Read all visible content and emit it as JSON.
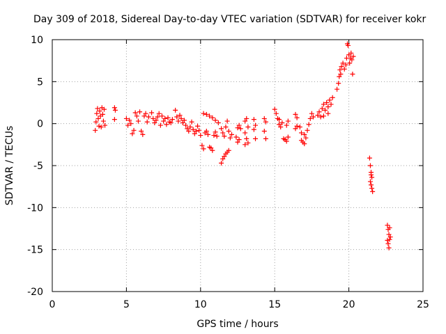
{
  "chart_data": {
    "type": "scatter",
    "title": "Day 309 of 2018, Sidereal Day-to-day VTEC variation (SDTVAR) for receiver kokr",
    "xlabel": "GPS time / hours",
    "ylabel": "SDTVAR / TECUs",
    "xlim": [
      0,
      25
    ],
    "ylim": [
      -20,
      10
    ],
    "xticks": [
      0,
      5,
      10,
      15,
      20,
      25
    ],
    "yticks": [
      10,
      5,
      0,
      -5,
      -10,
      -15,
      -20
    ],
    "grid": true,
    "marker": "+",
    "color": "#ff0000",
    "series": [
      {
        "name": "SDTVAR",
        "points": [
          [
            2.9,
            -0.8
          ],
          [
            2.95,
            0.2
          ],
          [
            3.0,
            1.2
          ],
          [
            3.05,
            1.8
          ],
          [
            3.1,
            0.6
          ],
          [
            3.15,
            -0.3
          ],
          [
            3.2,
            1.5
          ],
          [
            3.25,
            0.9
          ],
          [
            3.3,
            -0.4
          ],
          [
            3.35,
            1.9
          ],
          [
            3.4,
            1.1
          ],
          [
            3.45,
            0.3
          ],
          [
            3.5,
            1.7
          ],
          [
            3.55,
            -0.2
          ],
          [
            4.2,
            1.9
          ],
          [
            4.25,
            1.6
          ],
          [
            4.2,
            0.5
          ],
          [
            5.0,
            0.6
          ],
          [
            5.1,
            -0.2
          ],
          [
            5.2,
            0.4
          ],
          [
            5.3,
            0.0
          ],
          [
            5.4,
            -1.2
          ],
          [
            5.5,
            -0.8
          ],
          [
            5.6,
            1.3
          ],
          [
            5.7,
            0.9
          ],
          [
            5.8,
            0.3
          ],
          [
            5.9,
            1.4
          ],
          [
            6.0,
            -0.9
          ],
          [
            6.1,
            -1.3
          ],
          [
            6.2,
            0.9
          ],
          [
            6.3,
            1.2
          ],
          [
            6.4,
            0.2
          ],
          [
            6.5,
            0.8
          ],
          [
            6.7,
            1.3
          ],
          [
            6.8,
            0.6
          ],
          [
            6.9,
            0.1
          ],
          [
            7.0,
            0.4
          ],
          [
            7.1,
            0.8
          ],
          [
            7.2,
            1.2
          ],
          [
            7.3,
            -0.2
          ],
          [
            7.4,
            0.9
          ],
          [
            7.5,
            0.3
          ],
          [
            7.6,
            0.6
          ],
          [
            7.7,
            -0.1
          ],
          [
            7.8,
            0.7
          ],
          [
            7.9,
            0.2
          ],
          [
            8.0,
            0.1
          ],
          [
            8.1,
            0.5
          ],
          [
            8.3,
            1.6
          ],
          [
            8.4,
            0.8
          ],
          [
            8.5,
            0.3
          ],
          [
            8.6,
            1.0
          ],
          [
            8.7,
            0.6
          ],
          [
            8.8,
            0.1
          ],
          [
            8.9,
            0.4
          ],
          [
            9.0,
            -0.2
          ],
          [
            9.1,
            -0.6
          ],
          [
            9.2,
            -0.9
          ],
          [
            9.3,
            -0.4
          ],
          [
            9.4,
            0.2
          ],
          [
            9.5,
            -0.7
          ],
          [
            9.6,
            -1.2
          ],
          [
            9.7,
            -0.9
          ],
          [
            9.8,
            -0.3
          ],
          [
            9.9,
            -0.8
          ],
          [
            10.0,
            -1.4
          ],
          [
            10.1,
            -2.6
          ],
          [
            10.2,
            -3.0
          ],
          [
            10.3,
            -1.1
          ],
          [
            10.4,
            -0.9
          ],
          [
            10.5,
            -1.3
          ],
          [
            10.6,
            -2.8
          ],
          [
            10.7,
            -2.9
          ],
          [
            10.8,
            -3.2
          ],
          [
            10.9,
            -1.4
          ],
          [
            11.0,
            -1.0
          ],
          [
            11.1,
            -1.5
          ],
          [
            10.2,
            1.2
          ],
          [
            10.4,
            1.1
          ],
          [
            10.6,
            0.9
          ],
          [
            10.8,
            0.7
          ],
          [
            11.0,
            0.4
          ],
          [
            11.2,
            0.1
          ],
          [
            11.4,
            -0.6
          ],
          [
            11.5,
            -1.1
          ],
          [
            11.4,
            -4.7
          ],
          [
            11.5,
            -4.2
          ],
          [
            11.6,
            -3.9
          ],
          [
            11.7,
            -3.6
          ],
          [
            11.8,
            -3.4
          ],
          [
            11.9,
            -3.2
          ],
          [
            11.6,
            -1.5
          ],
          [
            11.7,
            -0.4
          ],
          [
            11.8,
            0.3
          ],
          [
            11.9,
            -0.9
          ],
          [
            12.0,
            -1.7
          ],
          [
            12.1,
            -1.3
          ],
          [
            12.4,
            -1.6
          ],
          [
            12.5,
            -2.2
          ],
          [
            12.6,
            -1.9
          ],
          [
            12.5,
            -0.5
          ],
          [
            12.6,
            -0.2
          ],
          [
            12.7,
            -0.6
          ],
          [
            13.0,
            0.3
          ],
          [
            13.1,
            0.6
          ],
          [
            13.2,
            -0.4
          ],
          [
            13.0,
            -1.1
          ],
          [
            13.1,
            -1.8
          ],
          [
            13.2,
            -2.3
          ],
          [
            13.0,
            -2.5
          ],
          [
            13.6,
            0.5
          ],
          [
            13.7,
            -0.2
          ],
          [
            13.6,
            -0.7
          ],
          [
            13.7,
            -1.8
          ],
          [
            14.3,
            0.6
          ],
          [
            14.4,
            0.2
          ],
          [
            14.3,
            -0.9
          ],
          [
            14.4,
            -1.8
          ],
          [
            15.0,
            1.7
          ],
          [
            15.1,
            1.2
          ],
          [
            15.2,
            0.6
          ],
          [
            15.3,
            -0.1
          ],
          [
            15.4,
            -0.4
          ],
          [
            15.3,
            0.5
          ],
          [
            15.5,
            0.1
          ],
          [
            15.6,
            -1.8
          ],
          [
            15.7,
            -1.9
          ],
          [
            15.8,
            -2.1
          ],
          [
            15.9,
            -1.6
          ],
          [
            15.8,
            -0.2
          ],
          [
            15.9,
            0.3
          ],
          [
            16.4,
            1.1
          ],
          [
            16.5,
            0.7
          ],
          [
            16.4,
            -0.6
          ],
          [
            16.5,
            -0.3
          ],
          [
            16.7,
            -0.4
          ],
          [
            16.8,
            -1.1
          ],
          [
            16.9,
            -2.2
          ],
          [
            17.0,
            -2.4
          ],
          [
            17.1,
            -1.7
          ],
          [
            17.2,
            -0.8
          ],
          [
            17.3,
            -0.1
          ],
          [
            17.4,
            0.6
          ],
          [
            17.5,
            1.2
          ],
          [
            17.6,
            0.8
          ],
          [
            16.8,
            -2.0
          ],
          [
            17.0,
            -1.3
          ],
          [
            17.9,
            1.0
          ],
          [
            18.0,
            1.4
          ],
          [
            18.1,
            0.8
          ],
          [
            18.2,
            1.8
          ],
          [
            18.3,
            2.3
          ],
          [
            18.4,
            1.6
          ],
          [
            18.5,
            2.5
          ],
          [
            18.6,
            2.0
          ],
          [
            18.7,
            2.8
          ],
          [
            18.8,
            2.3
          ],
          [
            18.9,
            3.1
          ],
          [
            18.3,
            0.9
          ],
          [
            18.6,
            1.2
          ],
          [
            19.2,
            4.1
          ],
          [
            19.3,
            4.8
          ],
          [
            19.35,
            5.6
          ],
          [
            19.4,
            6.4
          ],
          [
            19.45,
            5.9
          ],
          [
            19.5,
            6.8
          ],
          [
            19.6,
            7.2
          ],
          [
            19.7,
            6.5
          ],
          [
            19.8,
            7.0
          ],
          [
            19.85,
            7.8
          ],
          [
            19.9,
            9.5
          ],
          [
            19.95,
            9.3
          ],
          [
            20.0,
            8.2
          ],
          [
            20.05,
            7.2
          ],
          [
            20.1,
            7.8
          ],
          [
            20.15,
            8.4
          ],
          [
            20.2,
            7.6
          ],
          [
            20.25,
            5.9
          ],
          [
            20.3,
            8.0
          ],
          [
            21.4,
            -4.1
          ],
          [
            21.45,
            -5.0
          ],
          [
            21.5,
            -5.8
          ],
          [
            21.55,
            -6.4
          ],
          [
            21.45,
            -6.9
          ],
          [
            21.5,
            -7.3
          ],
          [
            21.55,
            -7.7
          ],
          [
            21.6,
            -8.1
          ],
          [
            21.5,
            -6.1
          ],
          [
            22.6,
            -12.1
          ],
          [
            22.65,
            -12.6
          ],
          [
            22.7,
            -13.2
          ],
          [
            22.75,
            -13.8
          ],
          [
            22.65,
            -14.3
          ],
          [
            22.7,
            -14.8
          ],
          [
            22.75,
            -12.4
          ],
          [
            22.8,
            -13.5
          ],
          [
            22.6,
            -13.9
          ]
        ]
      }
    ]
  }
}
